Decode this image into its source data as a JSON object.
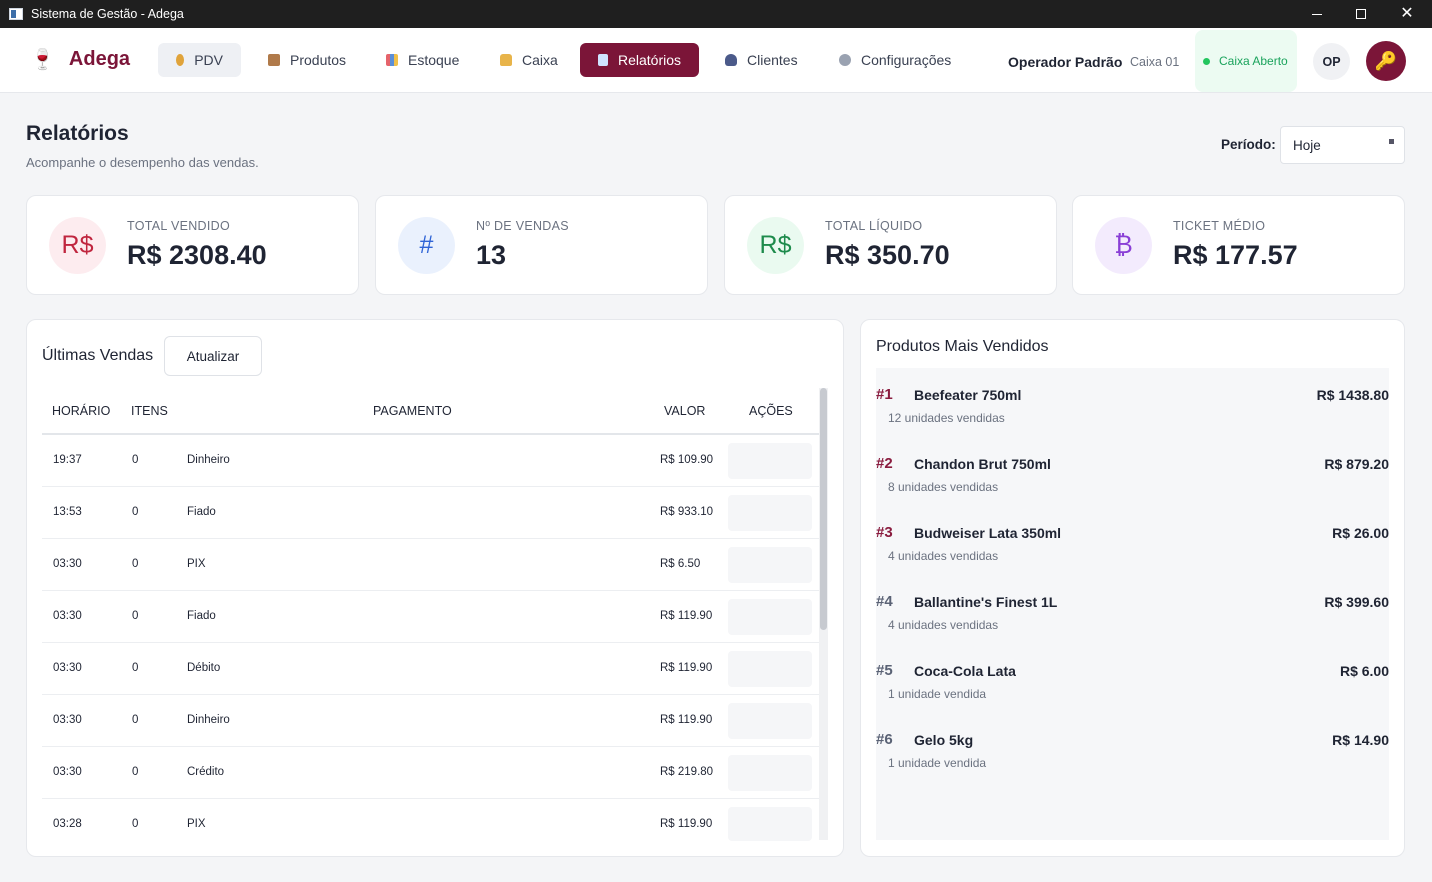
{
  "window": {
    "title": "Sistema de Gestão - Adega"
  },
  "brand": {
    "name": "Adega",
    "icon": "wine-glass-icon"
  },
  "nav": [
    {
      "label": "PDV",
      "icon": "money-bag-icon",
      "color": "#e0a33a"
    },
    {
      "label": "Produtos",
      "icon": "package-icon",
      "color": "#b07a4a"
    },
    {
      "label": "Estoque",
      "icon": "bar-chart-icon",
      "color": "#5b8fd8"
    },
    {
      "label": "Caixa",
      "icon": "lock-icon",
      "color": "#e8b44a"
    },
    {
      "label": "Relatórios",
      "icon": "trend-chart-icon",
      "color": "#cfe3ff",
      "active": true
    },
    {
      "label": "Clientes",
      "icon": "users-icon",
      "color": "#4b5a8a"
    },
    {
      "label": "Configurações",
      "icon": "gear-icon",
      "color": "#9aa2b1"
    }
  ],
  "header": {
    "operator": "Operador Padrão",
    "caixa": "Caixa 01",
    "status": "Caixa Aberto",
    "avatar": "OP",
    "key_icon": "key-icon"
  },
  "page": {
    "title": "Relatórios",
    "subtitle": "Acompanhe o desempenho das vendas.",
    "period_label": "Período:",
    "period_value": "Hoje"
  },
  "kpis": [
    {
      "label": "TOTAL VENDIDO",
      "value": "R$ 2308.40",
      "icon_text": "R$",
      "icon_color": "#c0263f",
      "icon_bg": "#fdecef"
    },
    {
      "label": "Nº DE VENDAS",
      "value": "13",
      "icon_text": "#",
      "icon_color": "#2f64d6",
      "icon_bg": "#eaf1fd"
    },
    {
      "label": "TOTAL LÍQUIDO",
      "value": "R$ 350.70",
      "icon_text": "R$",
      "icon_color": "#1e8b4c",
      "icon_bg": "#eafaf0"
    },
    {
      "label": "TICKET MÉDIO",
      "value": "R$ 177.57",
      "icon_text": "₿",
      "icon_color": "#8a3fd6",
      "icon_bg": "#f3ebfd"
    }
  ],
  "sales": {
    "title": "Últimas Vendas",
    "refresh": "Atualizar",
    "columns": [
      "HORÁRIO",
      "ITENS",
      "PAGAMENTO",
      "VALOR",
      "AÇÕES"
    ],
    "rows": [
      {
        "time": "19:37",
        "items": "0",
        "payment": "Dinheiro",
        "value": "R$ 109.90"
      },
      {
        "time": "13:53",
        "items": "0",
        "payment": "Fiado",
        "value": "R$ 933.10"
      },
      {
        "time": "03:30",
        "items": "0",
        "payment": "PIX",
        "value": "R$ 6.50"
      },
      {
        "time": "03:30",
        "items": "0",
        "payment": "Fiado",
        "value": "R$ 119.90"
      },
      {
        "time": "03:30",
        "items": "0",
        "payment": "Débito",
        "value": "R$ 119.90"
      },
      {
        "time": "03:30",
        "items": "0",
        "payment": "Dinheiro",
        "value": "R$ 119.90"
      },
      {
        "time": "03:30",
        "items": "0",
        "payment": "Crédito",
        "value": "R$ 219.80"
      },
      {
        "time": "03:28",
        "items": "0",
        "payment": "PIX",
        "value": "R$ 119.90"
      }
    ]
  },
  "top_products": {
    "title": "Produtos Mais Vendidos",
    "items": [
      {
        "rank": "#1",
        "name": "Beefeater 750ml",
        "qty": "12 unidades vendidas",
        "value": "R$ 1438.80",
        "rank_color": "#8a1c3f"
      },
      {
        "rank": "#2",
        "name": "Chandon Brut 750ml",
        "qty": "8 unidades vendidas",
        "value": "R$ 879.20",
        "rank_color": "#8a1c3f"
      },
      {
        "rank": "#3",
        "name": "Budweiser Lata 350ml",
        "qty": "4 unidades vendidas",
        "value": "R$ 26.00",
        "rank_color": "#8a1c3f"
      },
      {
        "rank": "#4",
        "name": "Ballantine's Finest 1L",
        "qty": "4 unidades vendidas",
        "value": "R$ 399.60",
        "rank_color": "#5a6275"
      },
      {
        "rank": "#5",
        "name": "Coca-Cola Lata",
        "qty": "1 unidade vendida",
        "value": "R$ 6.00",
        "rank_color": "#5a6275"
      },
      {
        "rank": "#6",
        "name": "Gelo 5kg",
        "qty": "1 unidade vendida",
        "value": "R$ 14.90",
        "rank_color": "#5a6275"
      }
    ]
  }
}
